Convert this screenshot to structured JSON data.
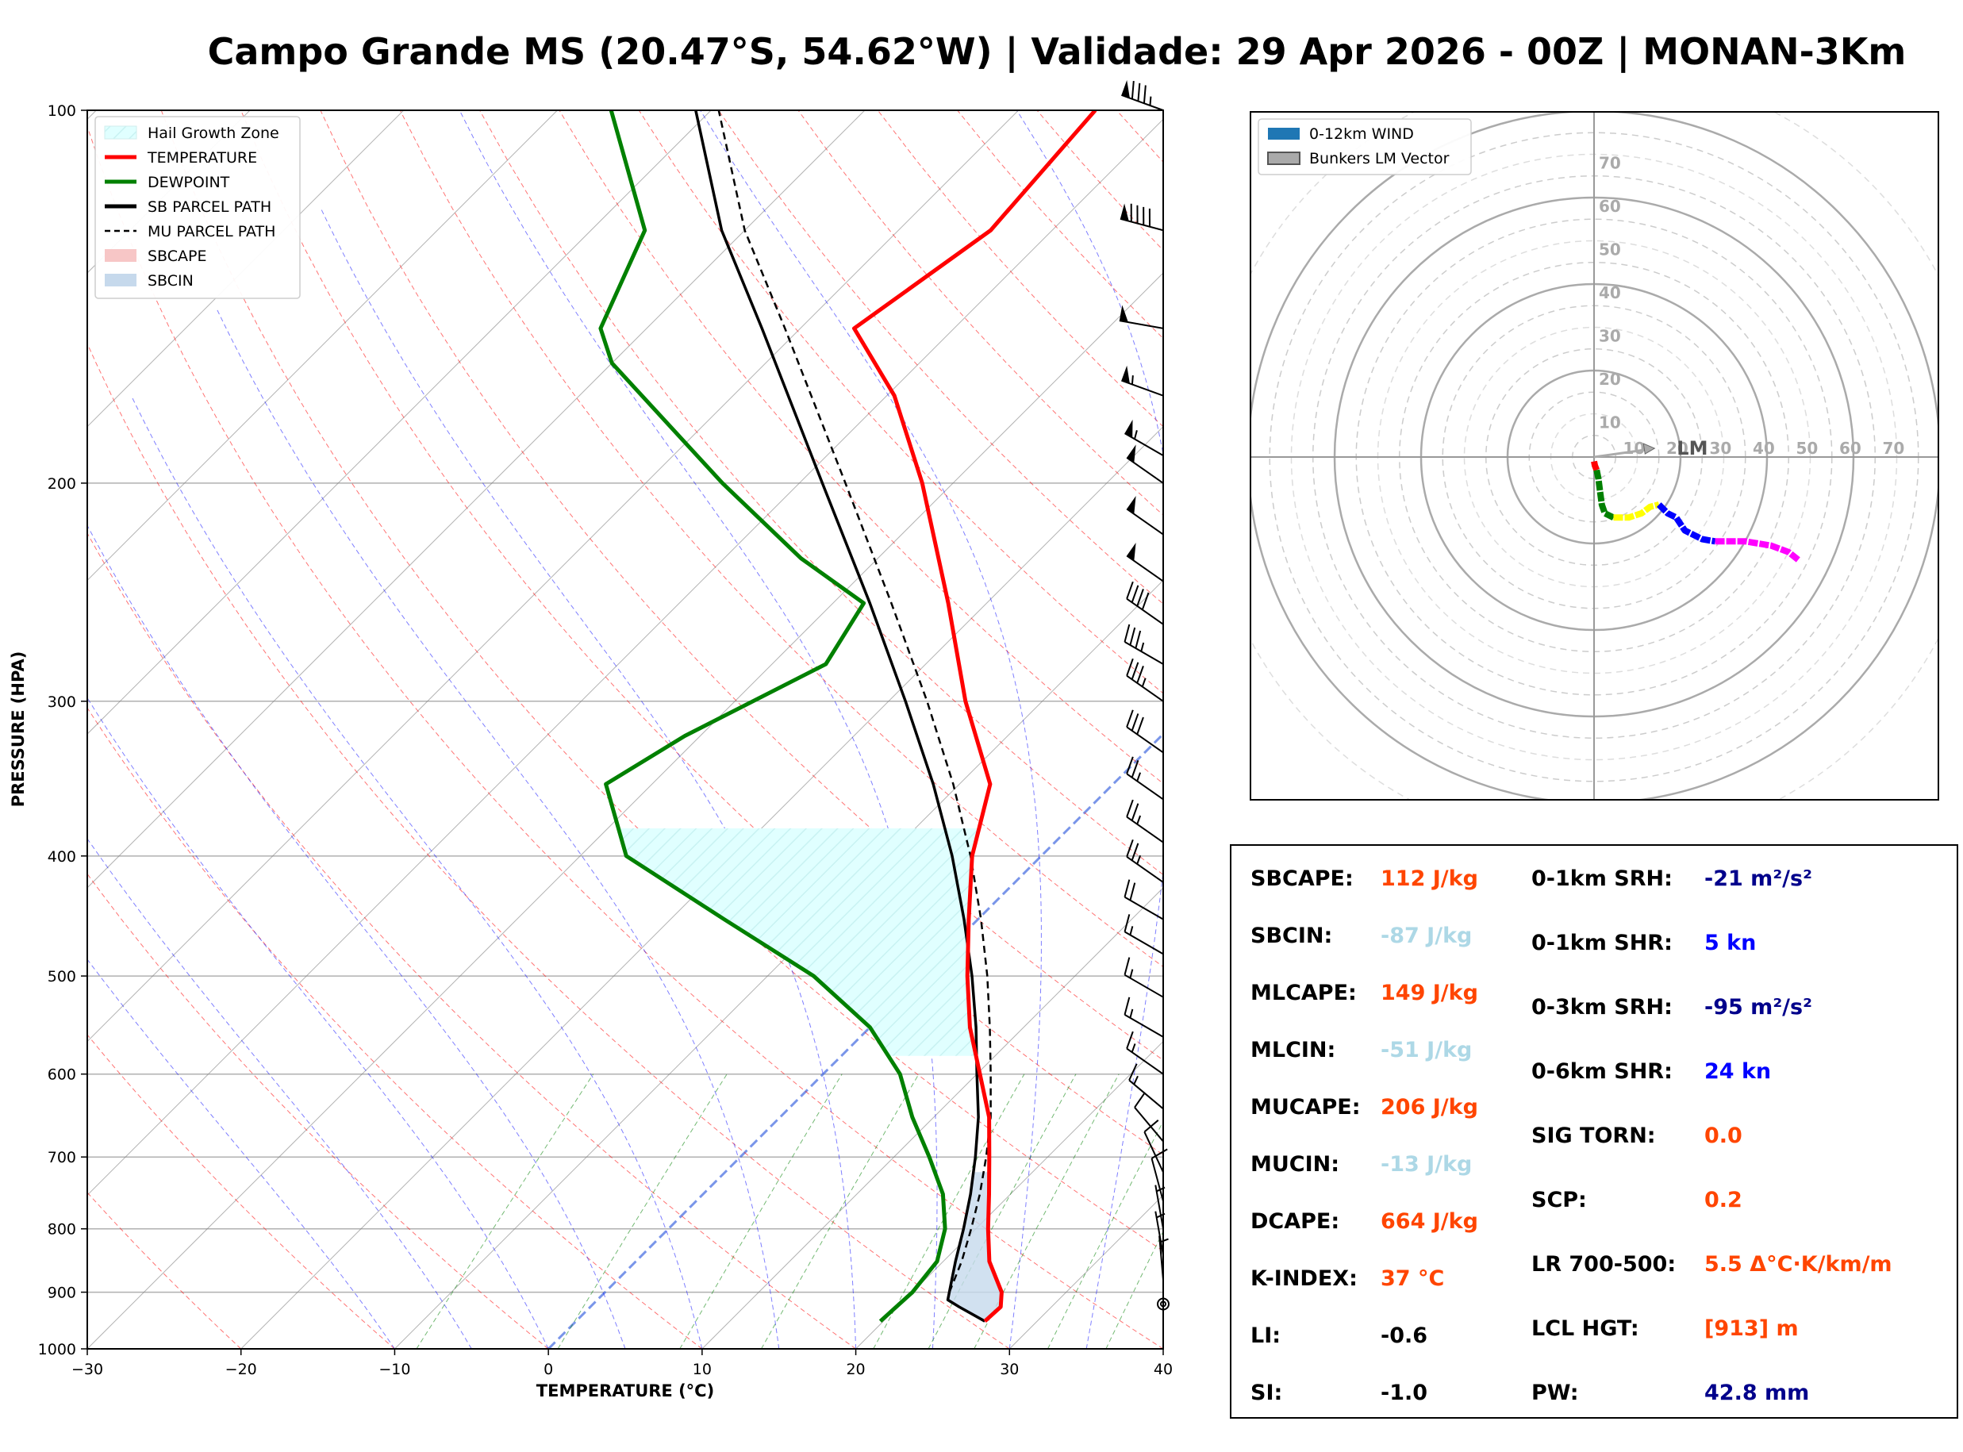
{
  "title": "Campo Grande MS (20.47°S, 54.62°W) | Validade: 29 Apr 2026 - 00Z | MONAN-3Km",
  "colors": {
    "temperature": "#ff0000",
    "dewpoint": "#008000",
    "parcel": "#000000",
    "hgz": "#e0ffff",
    "sbcin": "#c6d9ec",
    "dry_adiabat": "#ff0000",
    "moist_adiabat": "#0000ff",
    "mixing_ratio": "#008000",
    "isotherm": "#808080",
    "freezing": "#4169e1",
    "value_orange": "#ff4500",
    "value_lightblue": "#add8e6",
    "value_navy": "#00008b",
    "value_blue": "#0000ff"
  },
  "chart_data": [
    {
      "type": "line",
      "name": "skew-t",
      "xlabel": "TEMPERATURE (°C)",
      "ylabel": "PRESSURE (HPA)",
      "xlim": [
        -30,
        40
      ],
      "ylim": [
        1000,
        100
      ],
      "y_scale": "log",
      "x_ticks": [
        -30,
        -20,
        -10,
        0,
        10,
        20,
        30,
        40
      ],
      "x_tick_labels": [
        "−30",
        "−20",
        "−10",
        "0",
        "10",
        "20",
        "30",
        "40"
      ],
      "y_ticks": [
        100,
        200,
        300,
        400,
        500,
        600,
        700,
        800,
        900,
        1000
      ],
      "legend": {
        "placement": "top-left",
        "entries": [
          {
            "label": "Hail Growth Zone",
            "style": "hatch",
            "color": "#e0ffff"
          },
          {
            "label": "TEMPERATURE",
            "style": "line",
            "color": "#ff0000"
          },
          {
            "label": "DEWPOINT",
            "style": "line",
            "color": "#008000"
          },
          {
            "label": "SB PARCEL PATH",
            "style": "line",
            "color": "#000000"
          },
          {
            "label": "MU PARCEL PATH",
            "style": "dashed",
            "color": "#000000"
          },
          {
            "label": "SBCAPE",
            "style": "patch",
            "color": "#f7c6c6"
          },
          {
            "label": "SBCIN",
            "style": "patch",
            "color": "#c6d9ec"
          }
        ]
      },
      "temperature": [
        {
          "p": 950,
          "t": 26.6
        },
        {
          "p": 925,
          "t": 26.7
        },
        {
          "p": 900,
          "t": 25.8
        },
        {
          "p": 850,
          "t": 23.0
        },
        {
          "p": 800,
          "t": 20.8
        },
        {
          "p": 750,
          "t": 18.6
        },
        {
          "p": 700,
          "t": 16.2
        },
        {
          "p": 650,
          "t": 13.6
        },
        {
          "p": 600,
          "t": 10.2
        },
        {
          "p": 550,
          "t": 6.5
        },
        {
          "p": 500,
          "t": 3.0
        },
        {
          "p": 450,
          "t": -0.6
        },
        {
          "p": 400,
          "t": -4.5
        },
        {
          "p": 350,
          "t": -8.0
        },
        {
          "p": 300,
          "t": -15.0
        },
        {
          "p": 250,
          "t": -22.5
        },
        {
          "p": 200,
          "t": -32.0
        },
        {
          "p": 170,
          "t": -39.5
        },
        {
          "p": 150,
          "t": -46.5
        },
        {
          "p": 125,
          "t": -44.0
        },
        {
          "p": 100,
          "t": -45.0
        }
      ],
      "dewpoint": [
        {
          "p": 950,
          "t": 19.8
        },
        {
          "p": 925,
          "t": 19.9
        },
        {
          "p": 900,
          "t": 20.0
        },
        {
          "p": 850,
          "t": 19.6
        },
        {
          "p": 800,
          "t": 18.0
        },
        {
          "p": 750,
          "t": 15.6
        },
        {
          "p": 700,
          "t": 12.3
        },
        {
          "p": 650,
          "t": 8.6
        },
        {
          "p": 600,
          "t": 5.0
        },
        {
          "p": 550,
          "t": 0.0
        },
        {
          "p": 500,
          "t": -7.0
        },
        {
          "p": 450,
          "t": -16.5
        },
        {
          "p": 400,
          "t": -27.0
        },
        {
          "p": 350,
          "t": -33.0
        },
        {
          "p": 320,
          "t": -31.0
        },
        {
          "p": 280,
          "t": -26.5
        },
        {
          "p": 250,
          "t": -28.0
        },
        {
          "p": 230,
          "t": -35.0
        },
        {
          "p": 200,
          "t": -45.0
        },
        {
          "p": 160,
          "t": -60.0
        },
        {
          "p": 150,
          "t": -63.0
        },
        {
          "p": 125,
          "t": -66.5
        },
        {
          "p": 100,
          "t": -76.5
        }
      ],
      "sb_parcel": [
        {
          "p": 950,
          "t": 26.6
        },
        {
          "p": 925,
          "t": 24.0
        },
        {
          "p": 913,
          "t": 22.8
        },
        {
          "p": 850,
          "t": 20.8
        },
        {
          "p": 800,
          "t": 19.2
        },
        {
          "p": 750,
          "t": 17.4
        },
        {
          "p": 700,
          "t": 15.3
        },
        {
          "p": 650,
          "t": 12.9
        },
        {
          "p": 600,
          "t": 10.0
        },
        {
          "p": 550,
          "t": 6.9
        },
        {
          "p": 500,
          "t": 3.3
        },
        {
          "p": 450,
          "t": -0.9
        },
        {
          "p": 400,
          "t": -5.8
        },
        {
          "p": 350,
          "t": -11.7
        },
        {
          "p": 300,
          "t": -18.9
        },
        {
          "p": 250,
          "t": -27.6
        },
        {
          "p": 200,
          "t": -38.5
        },
        {
          "p": 150,
          "t": -52.5
        },
        {
          "p": 125,
          "t": -61.5
        },
        {
          "p": 100,
          "t": -71.0
        }
      ],
      "mu_parcel": [
        {
          "p": 900,
          "t": 22.4
        },
        {
          "p": 850,
          "t": 21.2
        },
        {
          "p": 800,
          "t": 19.7
        },
        {
          "p": 750,
          "t": 18.0
        },
        {
          "p": 700,
          "t": 16.0
        },
        {
          "p": 650,
          "t": 13.7
        },
        {
          "p": 600,
          "t": 10.9
        },
        {
          "p": 550,
          "t": 7.8
        },
        {
          "p": 500,
          "t": 4.3
        },
        {
          "p": 450,
          "t": 0.2
        },
        {
          "p": 400,
          "t": -4.6
        },
        {
          "p": 350,
          "t": -10.4
        },
        {
          "p": 300,
          "t": -17.5
        },
        {
          "p": 250,
          "t": -26.2
        },
        {
          "p": 200,
          "t": -37.0
        },
        {
          "p": 150,
          "t": -51.0
        },
        {
          "p": 125,
          "t": -60.0
        },
        {
          "p": 100,
          "t": -69.5
        }
      ],
      "hail_growth_zone": {
        "p_bottom": 580,
        "p_top": 380
      },
      "wind_barbs": [
        {
          "p": 100,
          "spd": 85,
          "dir": 290
        },
        {
          "p": 125,
          "spd": 90,
          "dir": 285
        },
        {
          "p": 150,
          "spd": 50,
          "dir": 280
        },
        {
          "p": 170,
          "spd": 55,
          "dir": 290
        },
        {
          "p": 190,
          "spd": 55,
          "dir": 300
        },
        {
          "p": 200,
          "spd": 50,
          "dir": 305
        },
        {
          "p": 220,
          "spd": 50,
          "dir": 305
        },
        {
          "p": 240,
          "spd": 50,
          "dir": 305
        },
        {
          "p": 260,
          "spd": 40,
          "dir": 305
        },
        {
          "p": 280,
          "spd": 35,
          "dir": 300
        },
        {
          "p": 300,
          "spd": 35,
          "dir": 305
        },
        {
          "p": 330,
          "spd": 30,
          "dir": 305
        },
        {
          "p": 360,
          "spd": 25,
          "dir": 305
        },
        {
          "p": 390,
          "spd": 25,
          "dir": 305
        },
        {
          "p": 420,
          "spd": 25,
          "dir": 305
        },
        {
          "p": 450,
          "spd": 20,
          "dir": 300
        },
        {
          "p": 480,
          "spd": 15,
          "dir": 300
        },
        {
          "p": 520,
          "spd": 15,
          "dir": 300
        },
        {
          "p": 560,
          "spd": 15,
          "dir": 300
        },
        {
          "p": 600,
          "spd": 15,
          "dir": 305
        },
        {
          "p": 640,
          "spd": 15,
          "dir": 310
        },
        {
          "p": 680,
          "spd": 10,
          "dir": 320
        },
        {
          "p": 720,
          "spd": 10,
          "dir": 335
        },
        {
          "p": 760,
          "spd": 10,
          "dir": 345
        },
        {
          "p": 800,
          "spd": 5,
          "dir": 350
        },
        {
          "p": 840,
          "spd": 5,
          "dir": 350
        },
        {
          "p": 880,
          "spd": 5,
          "dir": 355
        },
        {
          "p": 920,
          "spd": 0,
          "dir": 0
        }
      ]
    },
    {
      "type": "line",
      "name": "hodograph",
      "ring_labels": [
        "10",
        "20",
        "30",
        "40",
        "50",
        "60",
        "70"
      ],
      "ring_values": [
        10,
        20,
        30,
        40,
        50,
        60,
        70
      ],
      "max_speed": 80,
      "legend": {
        "placement": "top-left",
        "entries": [
          {
            "label": "0-12km WIND",
            "color": "#1f77b4"
          },
          {
            "label": "Bunkers LM Vector",
            "color": "#aaaaaa"
          }
        ]
      },
      "lm_label": "LM",
      "lm_vector": {
        "u": 14,
        "v": 2
      },
      "segments": [
        {
          "color": "#ff0000",
          "points": [
            [
              0,
              -1
            ],
            [
              0.2,
              -2
            ],
            [
              0.6,
              -3
            ]
          ]
        },
        {
          "color": "#008000",
          "points": [
            [
              0.6,
              -3
            ],
            [
              1.0,
              -5
            ],
            [
              1.4,
              -8
            ],
            [
              1.8,
              -11
            ],
            [
              2.5,
              -13
            ],
            [
              4.5,
              -14
            ]
          ]
        },
        {
          "color": "#ffff00",
          "points": [
            [
              4.5,
              -14
            ],
            [
              8,
              -14
            ],
            [
              11,
              -13
            ],
            [
              13,
              -11.5
            ],
            [
              15,
              -11
            ]
          ]
        },
        {
          "color": "#0000ff",
          "points": [
            [
              15,
              -11
            ],
            [
              17,
              -13
            ],
            [
              19,
              -14
            ],
            [
              21,
              -17
            ],
            [
              25,
              -19
            ],
            [
              28,
              -19.5
            ]
          ]
        },
        {
          "color": "#ff00ff",
          "points": [
            [
              28,
              -19.5
            ],
            [
              35,
              -19.5
            ],
            [
              41,
              -20.5
            ],
            [
              45,
              -22
            ],
            [
              47.5,
              -24
            ]
          ]
        }
      ]
    }
  ],
  "params": [
    {
      "label": "SBCAPE:",
      "value": "112 J/kg",
      "color": "#ff4500"
    },
    {
      "label": "SBCIN:",
      "value": "-87 J/kg",
      "color": "#add8e6"
    },
    {
      "label": "MLCAPE:",
      "value": "149 J/kg",
      "color": "#ff4500"
    },
    {
      "label": "MLCIN:",
      "value": "-51 J/kg",
      "color": "#add8e6"
    },
    {
      "label": "MUCAPE:",
      "value": "206 J/kg",
      "color": "#ff4500"
    },
    {
      "label": "MUCIN:",
      "value": "-13 J/kg",
      "color": "#add8e6"
    },
    {
      "label": "DCAPE:",
      "value": "664 J/kg",
      "color": "#ff4500"
    },
    {
      "label": "K-INDEX:",
      "value": "37 °C",
      "color": "#ff4500"
    },
    {
      "label": "LI:",
      "value": "-0.6",
      "color": "#000000"
    },
    {
      "label": "SI:",
      "value": "-1.0",
      "color": "#000000"
    },
    {
      "label": "0-1km SRH:",
      "value": "-21 m²/s²",
      "color": "#00008b"
    },
    {
      "label": "0-1km SHR:",
      "value": "5 kn",
      "color": "#0000ff"
    },
    {
      "label": "0-3km SRH:",
      "value": "-95 m²/s²",
      "color": "#00008b"
    },
    {
      "label": "0-6km SHR:",
      "value": "24 kn",
      "color": "#0000ff"
    },
    {
      "label": "SIG TORN:",
      "value": "0.0",
      "color": "#ff4500"
    },
    {
      "label": "SCP:",
      "value": "0.2",
      "color": "#ff4500"
    },
    {
      "label": "LR 700-500:",
      "value": "5.5 Δ°C·K/km/m",
      "color": "#ff4500"
    },
    {
      "label": "LCL HGT:",
      "value": "[913] m",
      "color": "#ff4500"
    },
    {
      "label": "PW:",
      "value": "42.8 mm",
      "color": "#00008b"
    }
  ]
}
